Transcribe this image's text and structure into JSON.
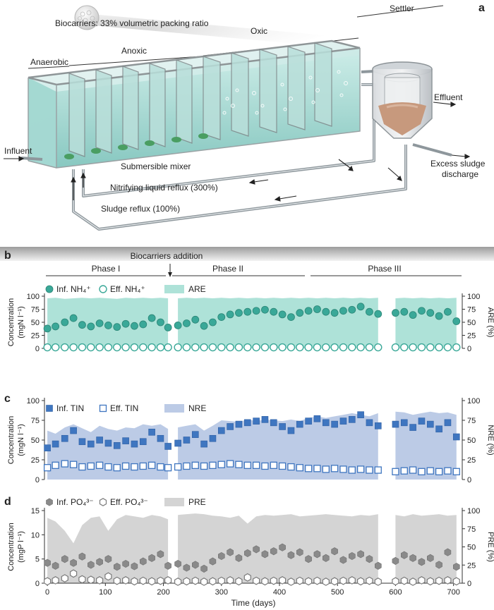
{
  "panel_a": {
    "letter": "a",
    "labels": {
      "biocarriers": "Biocarriers: 33% volumetric packing ratio",
      "anaerobic": "Anaerobic",
      "anoxic": "Anoxic",
      "oxic": "Oxic",
      "settler": "Settler",
      "influent": "Influent",
      "effluent": "Effluent",
      "excess_sludge": "Excess sludge",
      "discharge": "discharge",
      "submersible_mixer": "Submersible mixer",
      "nitrifying_reflux": "Nitrifying liquid reflux (300%)",
      "sludge_reflux": "Sludge reflux (100%)"
    }
  },
  "panel_b": {
    "letter": "b",
    "biocarriers_addition": "Biocarriers addition",
    "phases": [
      "Phase I",
      "Phase II",
      "Phase III"
    ]
  },
  "colors": {
    "teal": "#3aa898",
    "ammonium_area": "#aee2d8",
    "blue": "#3f76c0",
    "nitrogen_area": "#bccbe6",
    "gray": "#8a8a8a",
    "phosphate_area": "#d4d4d4"
  },
  "chart_data": [
    {
      "panel": "b",
      "type": "scatter",
      "title": "",
      "ylabel_line1": "Concentration",
      "ylabel_line2": "(mgN l⁻¹)",
      "y2label": "ARE (%)",
      "ylim": [
        0,
        100
      ],
      "y2lim": [
        0,
        100
      ],
      "yticks": [
        "0",
        "25",
        "50",
        "75",
        "100"
      ],
      "y2ticks": [
        "0",
        "25",
        "50",
        "75",
        "100"
      ],
      "legend": [
        "Inf. NH₄⁺",
        "Eff. NH₄⁺",
        "ARE"
      ],
      "xlim": [
        -5,
        715
      ],
      "x": [
        0,
        14,
        30,
        45,
        60,
        75,
        90,
        105,
        120,
        135,
        150,
        165,
        180,
        195,
        208,
        225,
        240,
        255,
        270,
        285,
        300,
        315,
        330,
        345,
        360,
        375,
        390,
        405,
        420,
        435,
        450,
        465,
        480,
        495,
        510,
        525,
        540,
        555,
        570,
        600,
        615,
        630,
        645,
        660,
        675,
        690,
        705
      ],
      "influent": [
        38,
        42,
        50,
        58,
        45,
        42,
        48,
        44,
        41,
        47,
        43,
        46,
        58,
        50,
        40,
        44,
        48,
        55,
        43,
        50,
        60,
        65,
        68,
        70,
        72,
        74,
        70,
        65,
        60,
        68,
        72,
        75,
        70,
        68,
        72,
        74,
        80,
        70,
        66,
        68,
        70,
        64,
        72,
        68,
        62,
        70,
        52
      ],
      "effluent": [
        2,
        2,
        2,
        2,
        2,
        2,
        2,
        2,
        2,
        2,
        2,
        2,
        2,
        2,
        2,
        2,
        2,
        2,
        2,
        2,
        2,
        2,
        2,
        2,
        2,
        2,
        2,
        2,
        2,
        2,
        2,
        2,
        2,
        2,
        2,
        2,
        2,
        2,
        2,
        2,
        2,
        2,
        2,
        2,
        2,
        2,
        2
      ],
      "removal_pct": [
        96,
        97,
        95,
        96,
        97,
        96,
        97,
        96,
        95,
        97,
        96,
        97,
        96,
        97,
        96,
        96,
        97,
        96,
        97,
        96,
        97,
        96,
        97,
        96,
        97,
        96,
        97,
        96,
        97,
        96,
        97,
        96,
        97,
        96,
        97,
        96,
        97,
        96,
        97,
        96,
        97,
        96,
        97,
        96,
        97,
        96,
        97
      ],
      "gaps": [
        [
          212,
          218
        ],
        [
          580,
          588
        ]
      ]
    },
    {
      "panel": "c",
      "type": "scatter",
      "title": "",
      "ylabel_line1": "Concentration",
      "ylabel_line2": "(mgN l⁻¹)",
      "y2label": "NRE (%)",
      "ylim": [
        0,
        100
      ],
      "y2lim": [
        0,
        100
      ],
      "yticks": [
        "0",
        "25",
        "50",
        "75",
        "100"
      ],
      "y2ticks": [
        "0",
        "25",
        "50",
        "75",
        "100"
      ],
      "legend": [
        "Inf. TIN",
        "Eff. TIN",
        "NRE"
      ],
      "xlim": [
        -5,
        715
      ],
      "x": [
        0,
        14,
        30,
        45,
        60,
        75,
        90,
        105,
        120,
        135,
        150,
        165,
        180,
        195,
        208,
        225,
        240,
        255,
        270,
        285,
        300,
        315,
        330,
        345,
        360,
        375,
        390,
        405,
        420,
        435,
        450,
        465,
        480,
        495,
        510,
        525,
        540,
        555,
        570,
        600,
        615,
        630,
        645,
        660,
        675,
        690,
        705
      ],
      "influent": [
        40,
        45,
        52,
        62,
        48,
        45,
        50,
        46,
        43,
        49,
        45,
        48,
        60,
        52,
        42,
        46,
        50,
        57,
        45,
        52,
        62,
        67,
        70,
        72,
        74,
        76,
        72,
        67,
        62,
        70,
        74,
        77,
        72,
        70,
        74,
        76,
        82,
        72,
        68,
        70,
        72,
        66,
        74,
        70,
        64,
        72,
        54
      ],
      "effluent": [
        15,
        18,
        20,
        19,
        16,
        17,
        18,
        16,
        15,
        17,
        16,
        17,
        18,
        16,
        15,
        16,
        17,
        18,
        17,
        18,
        19,
        20,
        19,
        18,
        18,
        17,
        18,
        17,
        16,
        15,
        14,
        14,
        13,
        14,
        13,
        12,
        13,
        12,
        12,
        10,
        11,
        12,
        10,
        11,
        10,
        11,
        10
      ],
      "removal_pct": [
        62,
        58,
        66,
        70,
        65,
        60,
        68,
        64,
        62,
        66,
        65,
        70,
        68,
        70,
        64,
        66,
        68,
        70,
        62,
        68,
        75,
        74,
        73,
        76,
        74,
        76,
        75,
        74,
        76,
        74,
        78,
        80,
        78,
        80,
        82,
        84,
        82,
        80,
        84,
        86,
        85,
        82,
        84,
        86,
        84,
        85,
        82
      ],
      "gaps": [
        [
          212,
          218
        ],
        [
          580,
          588
        ]
      ]
    },
    {
      "panel": "d",
      "type": "scatter",
      "title": "",
      "ylabel_line1": "Concentration",
      "ylabel_line2": "(mgP l⁻¹)",
      "y2label": "PRE (%)",
      "ylim": [
        0,
        15
      ],
      "y2lim": [
        0,
        100
      ],
      "yticks": [
        "0",
        "5",
        "10",
        "15"
      ],
      "y2ticks": [
        "0",
        "25",
        "50",
        "75",
        "100"
      ],
      "legend": [
        "Inf. PO₄³⁻",
        "Eff. PO₄³⁻",
        "PRE"
      ],
      "xlim": [
        -5,
        715
      ],
      "xticks": [
        "0",
        "100",
        "200",
        "300",
        "400",
        "500",
        "600",
        "700"
      ],
      "xlabel": "Time (days)",
      "x": [
        0,
        14,
        30,
        45,
        60,
        75,
        90,
        105,
        120,
        135,
        150,
        165,
        180,
        195,
        208,
        225,
        240,
        255,
        270,
        285,
        300,
        315,
        330,
        345,
        360,
        375,
        390,
        405,
        420,
        435,
        450,
        465,
        480,
        495,
        510,
        525,
        540,
        555,
        570,
        600,
        615,
        630,
        645,
        660,
        675,
        690,
        705
      ],
      "influent": [
        4.2,
        3.6,
        5.0,
        4.2,
        5.5,
        3.8,
        4.4,
        5.0,
        3.4,
        4.0,
        3.5,
        4.5,
        5.2,
        6.0,
        3.6,
        4.0,
        3.2,
        3.8,
        3.0,
        4.5,
        5.6,
        6.4,
        5.2,
        6.2,
        7.0,
        6.0,
        6.6,
        7.4,
        5.8,
        6.4,
        5.0,
        6.0,
        5.2,
        6.6,
        4.8,
        5.6,
        6.0,
        5.0,
        3.6,
        4.6,
        5.8,
        5.2,
        4.4,
        5.2,
        3.8,
        6.4,
        3.4
      ],
      "effluent": [
        0.4,
        0.6,
        1.0,
        2.0,
        0.8,
        0.7,
        0.6,
        1.4,
        0.5,
        0.6,
        0.4,
        0.5,
        0.4,
        0.5,
        0.6,
        0.3,
        0.4,
        0.5,
        0.3,
        0.4,
        0.5,
        0.6,
        0.4,
        1.2,
        0.5,
        0.4,
        0.5,
        0.6,
        0.3,
        0.5,
        0.4,
        0.5,
        0.3,
        0.4,
        0.5,
        0.6,
        0.4,
        0.5,
        0.3,
        0.4,
        0.5,
        0.3,
        0.6,
        0.4,
        0.5,
        0.6,
        0.4
      ],
      "removal_pct": [
        90,
        85,
        72,
        55,
        80,
        90,
        92,
        72,
        88,
        94,
        92,
        90,
        94,
        92,
        88,
        94,
        95,
        96,
        95,
        93,
        92,
        90,
        93,
        82,
        92,
        94,
        93,
        94,
        95,
        92,
        93,
        94,
        95,
        94,
        93,
        92,
        94,
        93,
        95,
        94,
        92,
        95,
        93,
        94,
        95,
        93,
        94
      ],
      "gaps": [
        [
          212,
          218
        ],
        [
          580,
          588
        ]
      ]
    }
  ]
}
